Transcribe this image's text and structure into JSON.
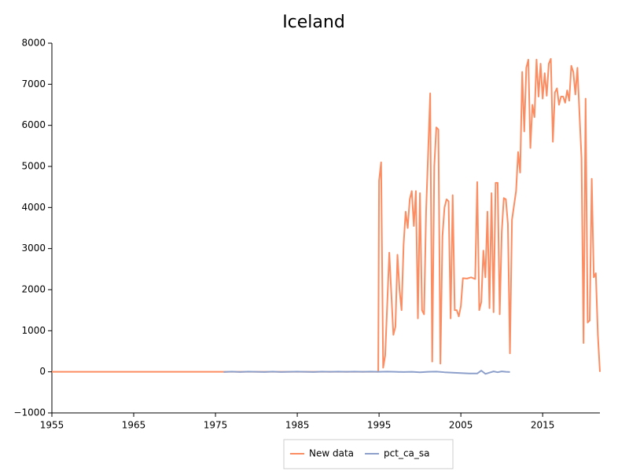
{
  "chart_data": {
    "type": "line",
    "title": "Iceland",
    "xlim": [
      1955,
      2022
    ],
    "ylim": [
      -1000,
      8000
    ],
    "xticks": [
      1955,
      1965,
      1975,
      1985,
      1995,
      2005,
      2015
    ],
    "yticks": [
      {
        "value": -1000,
        "label": "−1000"
      },
      0,
      1000,
      2000,
      3000,
      4000,
      5000,
      6000,
      7000,
      8000
    ],
    "grid": false,
    "legend": "bottom",
    "series": [
      {
        "name": "New data",
        "color": "#fc8d62",
        "x": [
          1955,
          1994.9,
          1995.0,
          1995.25,
          1995.5,
          1995.75,
          1996.25,
          1996.75,
          1997.0,
          1997.25,
          1997.5,
          1997.75,
          1998.0,
          1998.25,
          1998.5,
          1998.75,
          1999.0,
          1999.25,
          1999.5,
          1999.75,
          2000.0,
          2000.25,
          2000.5,
          2000.75,
          2001.25,
          2001.5,
          2001.75,
          2002.0,
          2002.25,
          2002.5,
          2002.75,
          2003.0,
          2003.25,
          2003.5,
          2003.75,
          2004.0,
          2004.25,
          2004.5,
          2004.75,
          2005.0,
          2005.25,
          2005.75,
          2006.25,
          2006.75,
          2007.0,
          2007.25,
          2007.5,
          2007.75,
          2008.0,
          2008.25,
          2008.5,
          2008.75,
          2009.0,
          2009.25,
          2009.5,
          2009.75,
          2010.0,
          2010.25,
          2010.5,
          2010.75,
          2011.0,
          2011.25,
          2011.75,
          2012.0,
          2012.25,
          2012.5,
          2012.75,
          2013.0,
          2013.25,
          2013.5,
          2013.75,
          2014.0,
          2014.25,
          2014.5,
          2014.75,
          2015.0,
          2015.25,
          2015.5,
          2015.75,
          2016.0,
          2016.25,
          2016.5,
          2016.75,
          2017.0,
          2017.25,
          2017.5,
          2017.75,
          2018.0,
          2018.25,
          2018.5,
          2018.75,
          2019.0,
          2019.25,
          2019.75,
          2020.0,
          2020.25,
          2020.5,
          2020.75,
          2021.0,
          2021.25,
          2021.5,
          2021.75,
          2022.0
        ],
        "values": [
          0,
          0,
          4650,
          5100,
          100,
          400,
          2900,
          900,
          1100,
          2850,
          2000,
          1500,
          3100,
          3900,
          3500,
          4200,
          4400,
          3550,
          4400,
          1300,
          4350,
          1500,
          1400,
          3900,
          6780,
          250,
          5000,
          5950,
          5900,
          200,
          3300,
          4000,
          4200,
          4150,
          1300,
          4300,
          1500,
          1500,
          1350,
          1600,
          2280,
          2270,
          2300,
          2260,
          4620,
          1500,
          1700,
          2950,
          2300,
          3900,
          1550,
          4350,
          1450,
          4600,
          4600,
          1400,
          3400,
          4230,
          4200,
          3600,
          450,
          3700,
          4400,
          5350,
          4850,
          7300,
          5850,
          7400,
          7600,
          5450,
          6500,
          6200,
          7600,
          6700,
          7500,
          6650,
          7270,
          6720,
          7500,
          7620,
          5600,
          6800,
          6900,
          6500,
          6700,
          6700,
          6550,
          6850,
          6600,
          7450,
          7300,
          6750,
          7400,
          5200,
          700,
          6650,
          1200,
          1250,
          4700,
          2300,
          2400,
          900,
          0
        ]
      },
      {
        "name": "pct_ca_sa",
        "color": "#8da0cb",
        "x": [
          1976,
          1977,
          1978,
          1979,
          1980,
          1981,
          1982,
          1983,
          1984,
          1985,
          1986,
          1987,
          1988,
          1989,
          1990,
          1991,
          1992,
          1993,
          1994,
          1995,
          1996,
          1997,
          1998,
          1999,
          2000,
          2001,
          2002,
          2003,
          2004,
          2005,
          2006,
          2007,
          2007.5,
          2008,
          2008.5,
          2009,
          2009.5,
          2010,
          2010.5,
          2011
        ],
        "values": [
          -5,
          5,
          -5,
          5,
          0,
          -5,
          5,
          -5,
          0,
          5,
          0,
          -5,
          5,
          0,
          5,
          0,
          5,
          0,
          5,
          0,
          5,
          0,
          -5,
          0,
          -10,
          0,
          5,
          -10,
          -20,
          -30,
          -40,
          -40,
          30,
          -50,
          -20,
          10,
          -10,
          10,
          0,
          -5
        ]
      }
    ]
  }
}
